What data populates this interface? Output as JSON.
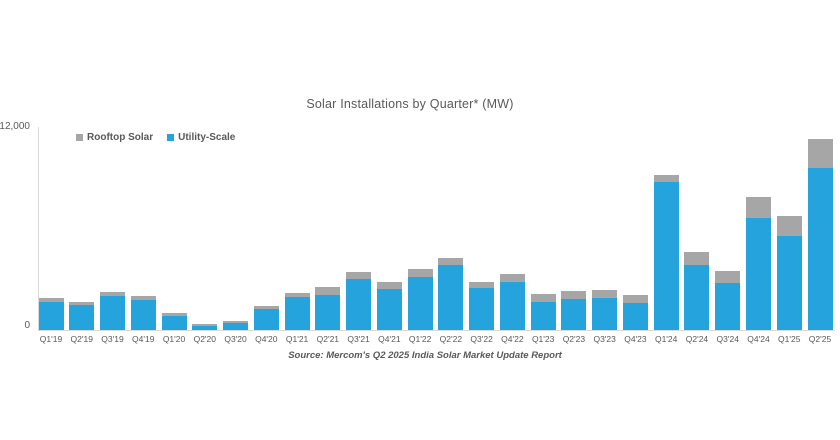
{
  "source_note": "Source: Mercom's Q2 2025 India Solar Market Update Report",
  "colors": {
    "utility_blue": "#24A3DC",
    "rooftop_gray": "#A6A6A6",
    "axis_line": "#D9D9D9",
    "text_gray": "#595959"
  },
  "chart_data": {
    "type": "bar",
    "stacked": true,
    "title": "Solar Installations by Quarter* (MW)",
    "xlabel": "",
    "ylabel": "",
    "ylim": [
      0,
      12000
    ],
    "ytick_labels": [
      "12,000",
      "0"
    ],
    "grid": false,
    "legend_position": "top-left",
    "categories": [
      "Q1'19",
      "Q2'19",
      "Q3'19",
      "Q4'19",
      "Q1'20",
      "Q2'20",
      "Q3'20",
      "Q4'20",
      "Q1'21",
      "Q2'21",
      "Q3'21",
      "Q4'21",
      "Q1'22",
      "Q2'22",
      "Q3'22",
      "Q4'22",
      "Q1'23",
      "Q2'23",
      "Q3'23",
      "Q4'23",
      "Q1'24",
      "Q2'24",
      "Q3'24",
      "Q4'24",
      "Q1'25",
      "Q2'25"
    ],
    "series": [
      {
        "name": "Utility-Scale",
        "color": "#24A3DC",
        "values": [
          1680,
          1490,
          2020,
          1790,
          840,
          260,
          440,
          1230,
          1930,
          2090,
          3040,
          2400,
          3150,
          3860,
          2480,
          2850,
          1660,
          1820,
          1920,
          1620,
          8750,
          3840,
          2770,
          6610,
          5580,
          9580
        ]
      },
      {
        "name": "Rooftop Solar",
        "color": "#A6A6A6",
        "values": [
          240,
          170,
          240,
          230,
          200,
          90,
          140,
          200,
          260,
          490,
          390,
          430,
          450,
          400,
          330,
          490,
          500,
          460,
          500,
          460,
          400,
          750,
          730,
          1250,
          1190,
          1690
        ]
      }
    ]
  }
}
